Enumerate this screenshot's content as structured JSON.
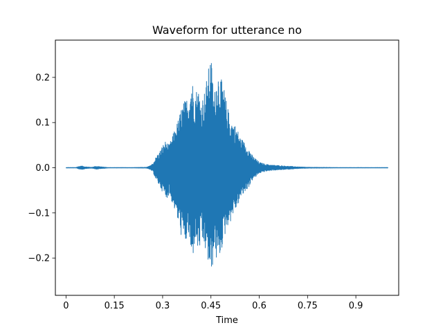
{
  "chart_data": {
    "type": "line",
    "title": "Waveform for utterance no",
    "xlabel": "Time",
    "ylabel": "",
    "xlim": [
      -0.033,
      1.033
    ],
    "ylim": [
      -0.2825,
      0.2825
    ],
    "x_ticks": [
      0,
      0.15,
      0.3,
      0.45,
      0.6,
      0.75,
      0.9
    ],
    "x_tick_labels": [
      "0",
      "0.15",
      "0.3",
      "0.45",
      "0.6",
      "0.75",
      "0.9"
    ],
    "y_ticks": [
      -0.2,
      -0.1,
      0.0,
      0.1,
      0.2
    ],
    "y_tick_labels": [
      "−0.2",
      "−0.1",
      "0.0",
      "0.1",
      "0.2"
    ],
    "grid": false,
    "legend": "none",
    "colors": {
      "series": "#1f77b4",
      "axes": "#000000"
    },
    "series": [
      {
        "x": [
          0,
          0.03,
          0.04,
          0.05,
          0.06,
          0.08,
          0.09,
          0.1,
          0.11,
          0.13,
          0.15,
          0.2,
          0.25,
          0.26,
          0.27,
          0.28,
          0.29,
          0.3,
          0.31,
          0.32,
          0.33,
          0.34,
          0.35,
          0.36,
          0.37,
          0.38,
          0.39,
          0.4,
          0.41,
          0.42,
          0.43,
          0.44,
          0.45,
          0.46,
          0.47,
          0.48,
          0.49,
          0.5,
          0.51,
          0.52,
          0.53,
          0.54,
          0.55,
          0.56,
          0.57,
          0.58,
          0.59,
          0.6,
          0.62,
          0.64,
          0.66,
          0.68,
          0.7,
          0.72,
          0.75,
          0.8,
          0.85,
          0.9,
          0.95,
          1.0
        ],
        "upper": [
          0.0005,
          0.0005,
          0.003,
          0.004,
          0.002,
          0.001,
          0.003,
          0.003,
          0.002,
          0.0005,
          0.0005,
          0.0005,
          0.001,
          0.004,
          0.01,
          0.025,
          0.035,
          0.05,
          0.06,
          0.05,
          0.07,
          0.09,
          0.11,
          0.14,
          0.15,
          0.16,
          0.2,
          0.17,
          0.18,
          0.15,
          0.17,
          0.21,
          0.25,
          0.16,
          0.22,
          0.2,
          0.18,
          0.14,
          0.11,
          0.1,
          0.09,
          0.07,
          0.06,
          0.05,
          0.04,
          0.025,
          0.02,
          0.012,
          0.008,
          0.006,
          0.005,
          0.004,
          0.003,
          0.002,
          0.001,
          0.0008,
          0.0005,
          0.0005,
          0.0005,
          0.0005
        ],
        "lower": [
          -0.0005,
          -0.0005,
          -0.003,
          -0.004,
          -0.002,
          -0.001,
          -0.003,
          -0.003,
          -0.002,
          -0.0005,
          -0.0005,
          -0.0005,
          -0.001,
          -0.004,
          -0.01,
          -0.03,
          -0.04,
          -0.055,
          -0.07,
          -0.06,
          -0.08,
          -0.1,
          -0.13,
          -0.16,
          -0.17,
          -0.15,
          -0.22,
          -0.16,
          -0.19,
          -0.17,
          -0.18,
          -0.21,
          -0.25,
          -0.18,
          -0.22,
          -0.19,
          -0.16,
          -0.13,
          -0.12,
          -0.1,
          -0.09,
          -0.07,
          -0.06,
          -0.05,
          -0.04,
          -0.025,
          -0.02,
          -0.012,
          -0.008,
          -0.006,
          -0.005,
          -0.004,
          -0.003,
          -0.002,
          -0.001,
          -0.0008,
          -0.0005,
          -0.0005,
          -0.0005,
          -0.0005
        ]
      }
    ]
  }
}
